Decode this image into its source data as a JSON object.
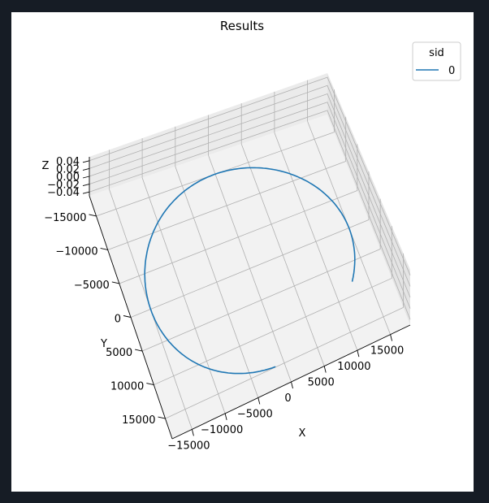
{
  "chart_data": {
    "type": "line",
    "title": "Results",
    "xlabel": "X",
    "ylabel": "Y",
    "zlabel": "Z",
    "x_ticks": [
      "−15000",
      "−10000",
      "−5000",
      "0",
      "5000",
      "10000",
      "15000"
    ],
    "y_ticks": [
      "−15000",
      "−10000",
      "−5000",
      "0",
      "5000",
      "10000",
      "15000"
    ],
    "z_ticks": [
      "0.04",
      "0.02",
      "0.00",
      "−0.02",
      "−0.04"
    ],
    "xlim": [
      -18000,
      18000
    ],
    "ylim": [
      -18000,
      18000
    ],
    "zlim": [
      -0.05,
      0.05
    ],
    "grid": true,
    "legend": {
      "title": "sid",
      "position": "top-right"
    },
    "series": [
      {
        "name": "0",
        "color": "#1f77b4",
        "shape": "circle",
        "center": [
          0,
          0,
          0
        ],
        "radius": 15000,
        "theta_start_deg": 95,
        "theta_end_deg": 392,
        "z": 0
      }
    ]
  }
}
